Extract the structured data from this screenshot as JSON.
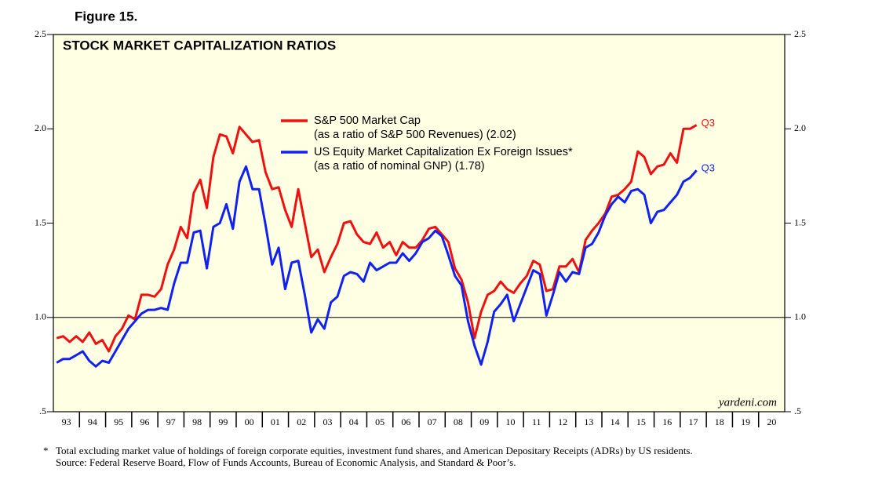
{
  "chart_data": {
    "type": "line",
    "figure_label": "Figure 15.",
    "title": "STOCK MARKET CAPITALIZATION RATIOS",
    "source_credit": "yardeni.com",
    "footnote_marker": "*",
    "footnote": "Total excluding market value of holdings of foreign corporate equities, investment fund shares, and American Depositary Receipts (ADRs) by US residents.",
    "source": "Source: Federal Reserve Board, Flow of Funds Accounts, Bureau of Economic Analysis, and Standard & Poor’s.",
    "background": "#ffffe3",
    "reference_line": 1,
    "xlim": [
      1993,
      2021
    ],
    "xticks": [
      {
        "value": 1993,
        "label": "93"
      },
      {
        "value": 1994,
        "label": "94"
      },
      {
        "value": 1995,
        "label": "95"
      },
      {
        "value": 1996,
        "label": "96"
      },
      {
        "value": 1997,
        "label": "97"
      },
      {
        "value": 1998,
        "label": "98"
      },
      {
        "value": 1999,
        "label": "99"
      },
      {
        "value": 2000,
        "label": "00"
      },
      {
        "value": 2001,
        "label": "01"
      },
      {
        "value": 2002,
        "label": "02"
      },
      {
        "value": 2003,
        "label": "03"
      },
      {
        "value": 2004,
        "label": "04"
      },
      {
        "value": 2005,
        "label": "05"
      },
      {
        "value": 2006,
        "label": "06"
      },
      {
        "value": 2007,
        "label": "07"
      },
      {
        "value": 2008,
        "label": "08"
      },
      {
        "value": 2009,
        "label": "09"
      },
      {
        "value": 2010,
        "label": "10"
      },
      {
        "value": 2011,
        "label": "11"
      },
      {
        "value": 2012,
        "label": "12"
      },
      {
        "value": 2013,
        "label": "13"
      },
      {
        "value": 2014,
        "label": "14"
      },
      {
        "value": 2015,
        "label": "15"
      },
      {
        "value": 2016,
        "label": "16"
      },
      {
        "value": 2017,
        "label": "17"
      },
      {
        "value": 2018,
        "label": "18"
      },
      {
        "value": 2019,
        "label": "19"
      },
      {
        "value": 2020,
        "label": "20"
      }
    ],
    "ylim": [
      0.5,
      2.5
    ],
    "yticks": [
      {
        "value": 0.5,
        "label": ".5"
      },
      {
        "value": 1,
        "label": "1.0"
      },
      1.5,
      {
        "value": 2,
        "label": "2.0"
      },
      2.5
    ],
    "y2lim": [
      0.5,
      2.5
    ],
    "y2ticks": [
      {
        "value": 0.5,
        "label": ".5"
      },
      {
        "value": 1,
        "label": "1.0"
      },
      1.5,
      {
        "value": 2,
        "label": "2.0"
      },
      2.5
    ],
    "x": [
      1993.125,
      1993.375,
      1993.625,
      1993.875,
      1994.125,
      1994.375,
      1994.625,
      1994.875,
      1995.125,
      1995.375,
      1995.625,
      1995.875,
      1996.125,
      1996.375,
      1996.625,
      1996.875,
      1997.125,
      1997.375,
      1997.625,
      1997.875,
      1998.125,
      1998.375,
      1998.625,
      1998.875,
      1999.125,
      1999.375,
      1999.625,
      1999.875,
      2000.125,
      2000.375,
      2000.625,
      2000.875,
      2001.125,
      2001.375,
      2001.625,
      2001.875,
      2002.125,
      2002.375,
      2002.625,
      2002.875,
      2003.125,
      2003.375,
      2003.625,
      2003.875,
      2004.125,
      2004.375,
      2004.625,
      2004.875,
      2005.125,
      2005.375,
      2005.625,
      2005.875,
      2006.125,
      2006.375,
      2006.625,
      2006.875,
      2007.125,
      2007.375,
      2007.625,
      2007.875,
      2008.125,
      2008.375,
      2008.625,
      2008.875,
      2009.125,
      2009.375,
      2009.625,
      2009.875,
      2010.125,
      2010.375,
      2010.625,
      2010.875,
      2011.125,
      2011.375,
      2011.625,
      2011.875,
      2012.125,
      2012.375,
      2012.625,
      2012.875,
      2013.125,
      2013.375,
      2013.625,
      2013.875,
      2014.125,
      2014.375,
      2014.625,
      2014.875,
      2015.125,
      2015.375,
      2015.625,
      2015.875,
      2016.125,
      2016.375,
      2016.625,
      2016.875,
      2017.125,
      2017.375,
      2017.625
    ],
    "series": [
      {
        "name": "S&P 500 Market Cap",
        "description": "(as a ratio of S&P 500 Revenues) (2.02)",
        "end_label": "Q3",
        "color": "#ee1111",
        "values": [
          0.89,
          0.9,
          0.87,
          0.9,
          0.87,
          0.92,
          0.86,
          0.88,
          0.82,
          0.9,
          0.94,
          1.01,
          0.99,
          1.12,
          1.12,
          1.11,
          1.15,
          1.28,
          1.36,
          1.48,
          1.42,
          1.66,
          1.73,
          1.58,
          1.85,
          1.97,
          1.96,
          1.87,
          2.01,
          1.97,
          1.93,
          1.94,
          1.77,
          1.68,
          1.69,
          1.57,
          1.48,
          1.68,
          1.5,
          1.32,
          1.36,
          1.24,
          1.32,
          1.39,
          1.5,
          1.51,
          1.44,
          1.4,
          1.39,
          1.45,
          1.37,
          1.4,
          1.33,
          1.4,
          1.37,
          1.37,
          1.41,
          1.47,
          1.48,
          1.44,
          1.4,
          1.26,
          1.2,
          1.08,
          0.89,
          1.03,
          1.12,
          1.14,
          1.19,
          1.15,
          1.13,
          1.18,
          1.22,
          1.3,
          1.28,
          1.14,
          1.15,
          1.27,
          1.27,
          1.31,
          1.24,
          1.41,
          1.46,
          1.5,
          1.55,
          1.64,
          1.65,
          1.68,
          1.72,
          1.88,
          1.85,
          1.76,
          1.8,
          1.81,
          1.87,
          1.82,
          2.0,
          2.0,
          2.02
        ]
      },
      {
        "name": "US Equity Market Capitalization Ex Foreign Issues*",
        "description": "(as a ratio of nominal GNP) (1.78)",
        "end_label": "Q3",
        "color": "#1122ee",
        "values": [
          0.76,
          0.78,
          0.78,
          0.8,
          0.82,
          0.77,
          0.74,
          0.77,
          0.76,
          0.82,
          0.88,
          0.94,
          0.98,
          1.02,
          1.04,
          1.04,
          1.05,
          1.04,
          1.18,
          1.29,
          1.29,
          1.45,
          1.46,
          1.26,
          1.48,
          1.5,
          1.6,
          1.47,
          1.72,
          1.8,
          1.68,
          1.68,
          1.49,
          1.28,
          1.37,
          1.15,
          1.29,
          1.3,
          1.12,
          0.92,
          0.99,
          0.94,
          1.08,
          1.11,
          1.22,
          1.24,
          1.23,
          1.19,
          1.29,
          1.25,
          1.27,
          1.29,
          1.29,
          1.34,
          1.3,
          1.34,
          1.4,
          1.42,
          1.46,
          1.43,
          1.33,
          1.22,
          1.17,
          0.98,
          0.85,
          0.75,
          0.87,
          1.03,
          1.07,
          1.12,
          0.98,
          1.07,
          1.16,
          1.25,
          1.23,
          1.01,
          1.12,
          1.24,
          1.19,
          1.24,
          1.23,
          1.37,
          1.39,
          1.45,
          1.54,
          1.6,
          1.64,
          1.61,
          1.67,
          1.68,
          1.65,
          1.5,
          1.56,
          1.57,
          1.61,
          1.65,
          1.72,
          1.74,
          1.78
        ]
      }
    ]
  }
}
